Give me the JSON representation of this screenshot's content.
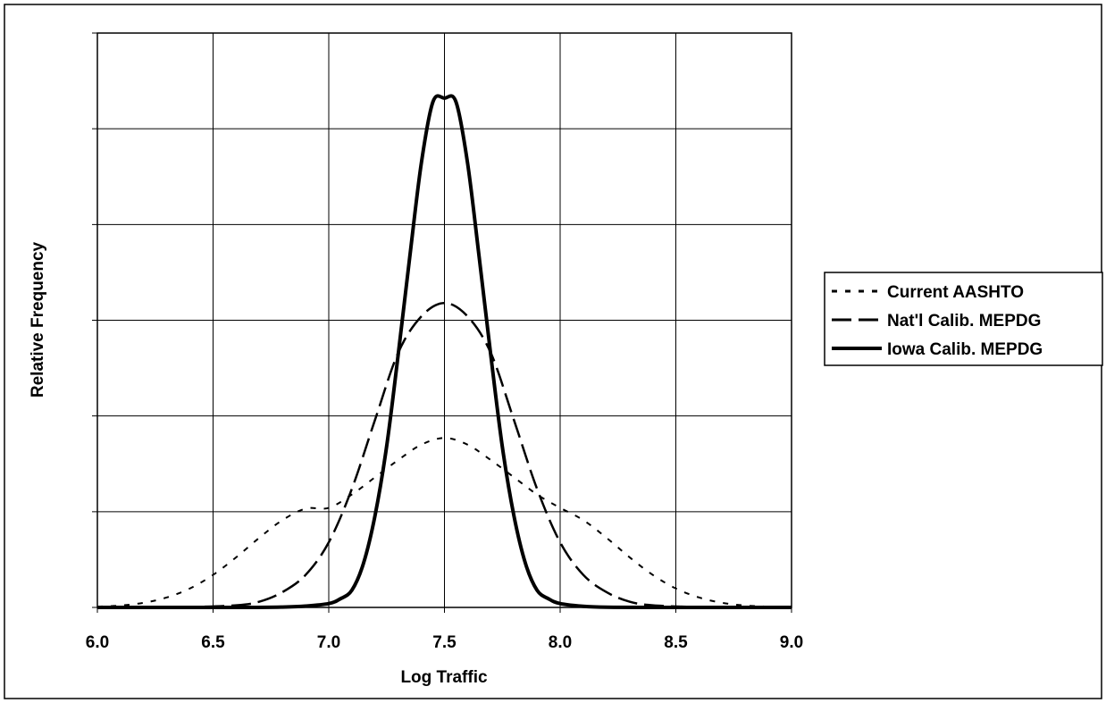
{
  "chart_data": {
    "type": "line",
    "title": "",
    "xlabel": "Log Traffic",
    "ylabel": "Relative Frequency",
    "xlim": [
      6.0,
      9.0
    ],
    "ylim": [
      0,
      3
    ],
    "x_ticks": [
      "6.0",
      "6.5",
      "7.0",
      "7.5",
      "8.0",
      "8.5",
      "9.0"
    ],
    "y_gridlines": [
      0,
      0.5,
      1.0,
      1.5,
      2.0,
      2.5,
      3.0
    ],
    "grid": true,
    "legend_position": "right",
    "series": [
      {
        "name": "Current AASHTO",
        "style": "dotted",
        "x": [
          6.0,
          6.1,
          6.2,
          6.3,
          6.4,
          6.5,
          6.6,
          6.7,
          6.8,
          6.9,
          7.0,
          7.1,
          7.2,
          7.3,
          7.4,
          7.5,
          7.6,
          7.7,
          7.8,
          7.9,
          8.0,
          8.1,
          8.2,
          8.3,
          8.4,
          8.5,
          8.6,
          8.7,
          8.8,
          8.9,
          9.0
        ],
        "y": [
          0.004,
          0.01,
          0.024,
          0.052,
          0.099,
          0.17,
          0.262,
          0.364,
          0.456,
          0.516,
          0.52,
          0.59,
          0.68,
          0.77,
          0.85,
          0.885,
          0.85,
          0.77,
          0.68,
          0.59,
          0.52,
          0.456,
          0.364,
          0.262,
          0.17,
          0.099,
          0.052,
          0.024,
          0.01,
          0.004,
          0.001
        ]
      },
      {
        "name": "Nat'l Calib. MEPDG",
        "style": "dashed",
        "x": [
          6.0,
          6.2,
          6.4,
          6.6,
          6.7,
          6.8,
          6.9,
          7.0,
          7.1,
          7.2,
          7.3,
          7.4,
          7.5,
          7.6,
          7.7,
          7.8,
          7.9,
          8.0,
          8.1,
          8.2,
          8.3,
          8.4,
          8.6,
          8.8,
          9.0
        ],
        "y": [
          0.0,
          0.0,
          0.002,
          0.011,
          0.03,
          0.08,
          0.17,
          0.34,
          0.62,
          0.98,
          1.33,
          1.52,
          1.59,
          1.52,
          1.33,
          0.98,
          0.62,
          0.34,
          0.17,
          0.08,
          0.03,
          0.011,
          0.002,
          0.0,
          0.0
        ]
      },
      {
        "name": "Iowa Calib. MEPDG",
        "style": "solid",
        "x": [
          6.0,
          6.6,
          6.8,
          6.9,
          7.0,
          7.05,
          7.1,
          7.15,
          7.2,
          7.25,
          7.3,
          7.35,
          7.4,
          7.45,
          7.5,
          7.55,
          7.6,
          7.65,
          7.7,
          7.75,
          7.8,
          7.85,
          7.9,
          7.95,
          8.0,
          8.1,
          8.2,
          8.4,
          9.0
        ],
        "y": [
          0.0,
          0.0,
          0.002,
          0.007,
          0.02,
          0.045,
          0.09,
          0.23,
          0.48,
          0.84,
          1.32,
          1.83,
          2.32,
          2.64,
          2.66,
          2.64,
          2.32,
          1.83,
          1.32,
          0.84,
          0.48,
          0.23,
          0.09,
          0.045,
          0.02,
          0.006,
          0.001,
          0.0,
          0.0
        ]
      }
    ]
  }
}
